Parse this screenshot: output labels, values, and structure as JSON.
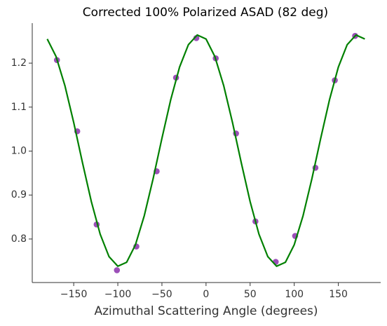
{
  "chart_data": {
    "type": "scatter",
    "title": "Corrected 100% Polarized ASAD (82 deg)",
    "x_label": "Azimuthal Scattering Angle (degrees)",
    "xlim": [
      -197,
      198
    ],
    "ylim": [
      0.701,
      1.291
    ],
    "xticks": [
      {
        "value": -150,
        "label": "−150"
      },
      {
        "value": -100,
        "label": "−100"
      },
      {
        "value": -50,
        "label": "−50"
      },
      0,
      50,
      100,
      150
    ],
    "yticks": [
      0.8,
      0.9,
      {
        "value": 1,
        "label": "1.0"
      },
      1.1,
      1.2
    ],
    "grid": false,
    "series": [
      {
        "type": "scatter",
        "color": "#9b4fb8",
        "x": [
          -169,
          -146,
          -124,
          -101,
          -79,
          -56,
          -34,
          -11,
          11,
          34,
          56,
          79,
          101,
          124,
          146,
          169
        ],
        "values": [
          1.207,
          1.045,
          0.833,
          0.729,
          0.783,
          0.954,
          1.167,
          1.257,
          1.211,
          1.04,
          0.84,
          0.748,
          0.807,
          0.962,
          1.161,
          1.262
        ]
      },
      {
        "type": "line",
        "color": "#008000",
        "x": [
          -180,
          -170,
          -160,
          -150,
          -140,
          -130,
          -120,
          -110,
          -100,
          -90,
          -80,
          -70,
          -60,
          -50,
          -40,
          -30,
          -20,
          -10,
          0,
          10,
          20,
          30,
          40,
          50,
          60,
          70,
          80,
          90,
          100,
          110,
          120,
          130,
          140,
          150,
          160,
          170,
          180
        ],
        "values": [
          1.255,
          1.215,
          1.149,
          1.065,
          0.973,
          0.885,
          0.811,
          0.76,
          0.738,
          0.747,
          0.787,
          0.853,
          0.937,
          1.029,
          1.117,
          1.191,
          1.242,
          1.264,
          1.255,
          1.215,
          1.149,
          1.065,
          0.973,
          0.885,
          0.811,
          0.76,
          0.738,
          0.747,
          0.787,
          0.853,
          0.937,
          1.029,
          1.117,
          1.191,
          1.242,
          1.264,
          1.255
        ]
      }
    ]
  }
}
